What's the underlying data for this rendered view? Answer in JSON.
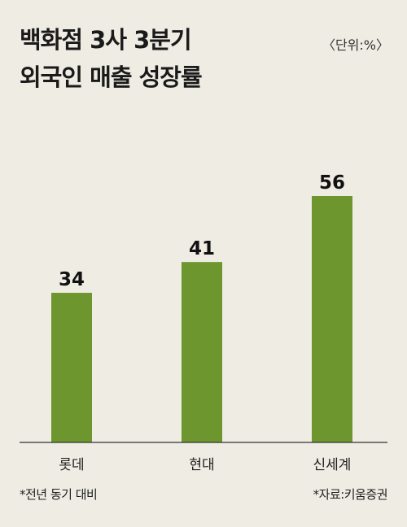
{
  "title_lines": [
    "백화점 3사 3분기",
    "외국인 매출 성장률"
  ],
  "unit": "〈단위:%〉",
  "footnote_left": "*전년 동기 대비",
  "footnote_right": "*자료:키움증권",
  "colors": {
    "bar": "#6e962e",
    "axis": "#333333",
    "background": "#eeece3"
  },
  "chart_data": {
    "type": "bar",
    "categories": [
      "롯데",
      "현대",
      "신세계"
    ],
    "values": [
      34,
      41,
      56
    ],
    "ylim": [
      0,
      56
    ],
    "grid": false,
    "data_labels": true
  }
}
